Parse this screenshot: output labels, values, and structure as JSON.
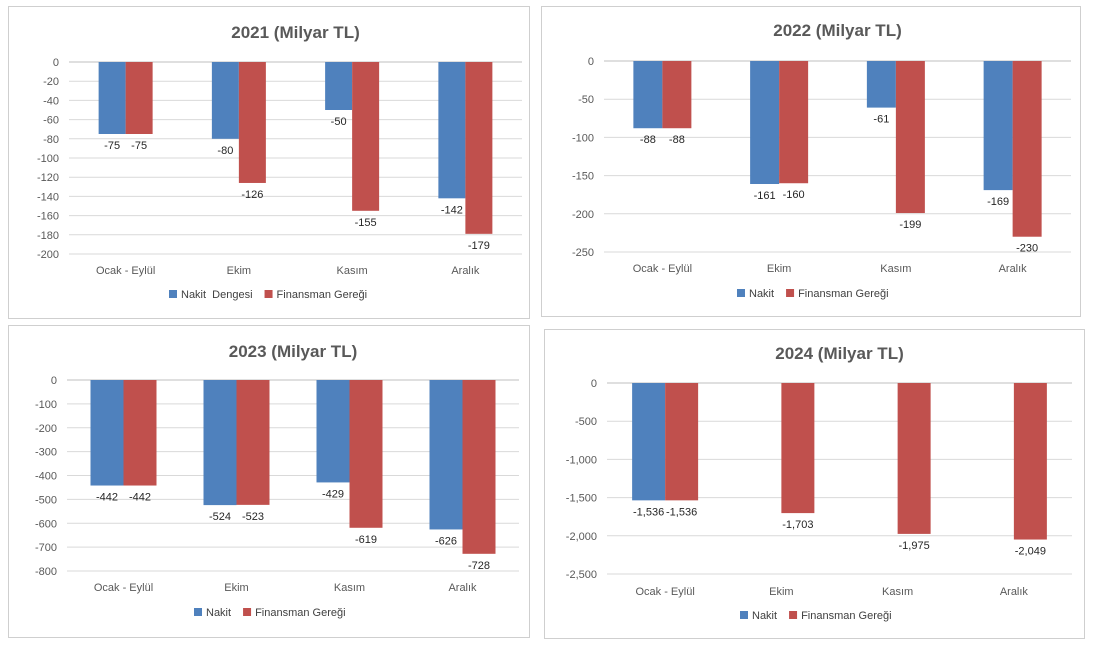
{
  "chart_data": [
    {
      "type": "bar",
      "title": "2021 (Milyar TL)",
      "categories": [
        "Ocak - Eylül",
        "Ekim",
        "Kasım",
        "Aralık"
      ],
      "ylim": [
        -200,
        0
      ],
      "yticks": [
        0,
        -20,
        -40,
        -60,
        -80,
        -100,
        -120,
        -140,
        -160,
        -180,
        -200
      ],
      "ytick_labels": [
        "0",
        "-20",
        "-40",
        "-60",
        "-80",
        "-100",
        "-120",
        "-140",
        "-160",
        "-180",
        "-200"
      ],
      "grid": true,
      "legend": "bottom",
      "series": [
        {
          "name": "Nakit  Dengesi",
          "color": "#4f81bd",
          "values": [
            -75,
            -80,
            -50,
            -142
          ],
          "labels": [
            "-75",
            "-80",
            "-50",
            "-142"
          ]
        },
        {
          "name": "Finansman Gereği",
          "color": "#c0504d",
          "values": [
            -75,
            -126,
            -155,
            -179
          ],
          "labels": [
            "-75",
            "-126",
            "-155",
            "-179"
          ]
        }
      ]
    },
    {
      "type": "bar",
      "title": "2022 (Milyar TL)",
      "categories": [
        "Ocak - Eylül",
        "Ekim",
        "Kasım",
        "Aralık"
      ],
      "ylim": [
        -250,
        0
      ],
      "yticks": [
        0,
        -50,
        -100,
        -150,
        -200,
        -250
      ],
      "ytick_labels": [
        "0",
        "-50",
        "-100",
        "-150",
        "-200",
        "-250"
      ],
      "grid": true,
      "legend": "bottom",
      "series": [
        {
          "name": "Nakit",
          "color": "#4f81bd",
          "values": [
            -88,
            -161,
            -61,
            -169
          ],
          "labels": [
            "-88",
            "-161",
            "-61",
            "-169"
          ]
        },
        {
          "name": "Finansman Gereği",
          "color": "#c0504d",
          "values": [
            -88,
            -160,
            -199,
            -230
          ],
          "labels": [
            "-88",
            "-160",
            "-199",
            "-230"
          ]
        }
      ]
    },
    {
      "type": "bar",
      "title": "2023 (Milyar TL)",
      "categories": [
        "Ocak - Eylül",
        "Ekim",
        "Kasım",
        "Aralık"
      ],
      "ylim": [
        -800,
        0
      ],
      "yticks": [
        0,
        -100,
        -200,
        -300,
        -400,
        -500,
        -600,
        -700,
        -800
      ],
      "ytick_labels": [
        "0",
        "-100",
        "-200",
        "-300",
        "-400",
        "-500",
        "-600",
        "-700",
        "-800"
      ],
      "grid": true,
      "legend": "bottom",
      "series": [
        {
          "name": "Nakit",
          "color": "#4f81bd",
          "values": [
            -442,
            -524,
            -429,
            -626
          ],
          "labels": [
            "-442",
            "-524",
            "-429",
            "-626"
          ]
        },
        {
          "name": "Finansman Gereği",
          "color": "#c0504d",
          "values": [
            -442,
            -523,
            -619,
            -728
          ],
          "labels": [
            "-442",
            "-523",
            "-619",
            "-728"
          ]
        }
      ]
    },
    {
      "type": "bar",
      "title": "2024 (Milyar TL)",
      "categories": [
        "Ocak - Eylül",
        "Ekim",
        "Kasım",
        "Aralık"
      ],
      "ylim": [
        -2500,
        0
      ],
      "yticks": [
        0,
        -500,
        -1000,
        -1500,
        -2000,
        -2500
      ],
      "ytick_labels": [
        "0",
        "-500",
        "-1,000",
        "-1,500",
        "-2,000",
        "-2,500"
      ],
      "grid": true,
      "legend": "bottom",
      "series": [
        {
          "name": "Nakit",
          "color": "#4f81bd",
          "values": [
            -1536,
            null,
            null,
            null
          ],
          "labels": [
            "-1,536",
            "",
            "",
            ""
          ]
        },
        {
          "name": "Finansman Gereği",
          "color": "#c0504d",
          "values": [
            -1536,
            -1703,
            -1975,
            -2049
          ],
          "labels": [
            "-1,536",
            "-1,703",
            "-1,975",
            "-2,049"
          ]
        }
      ]
    }
  ]
}
